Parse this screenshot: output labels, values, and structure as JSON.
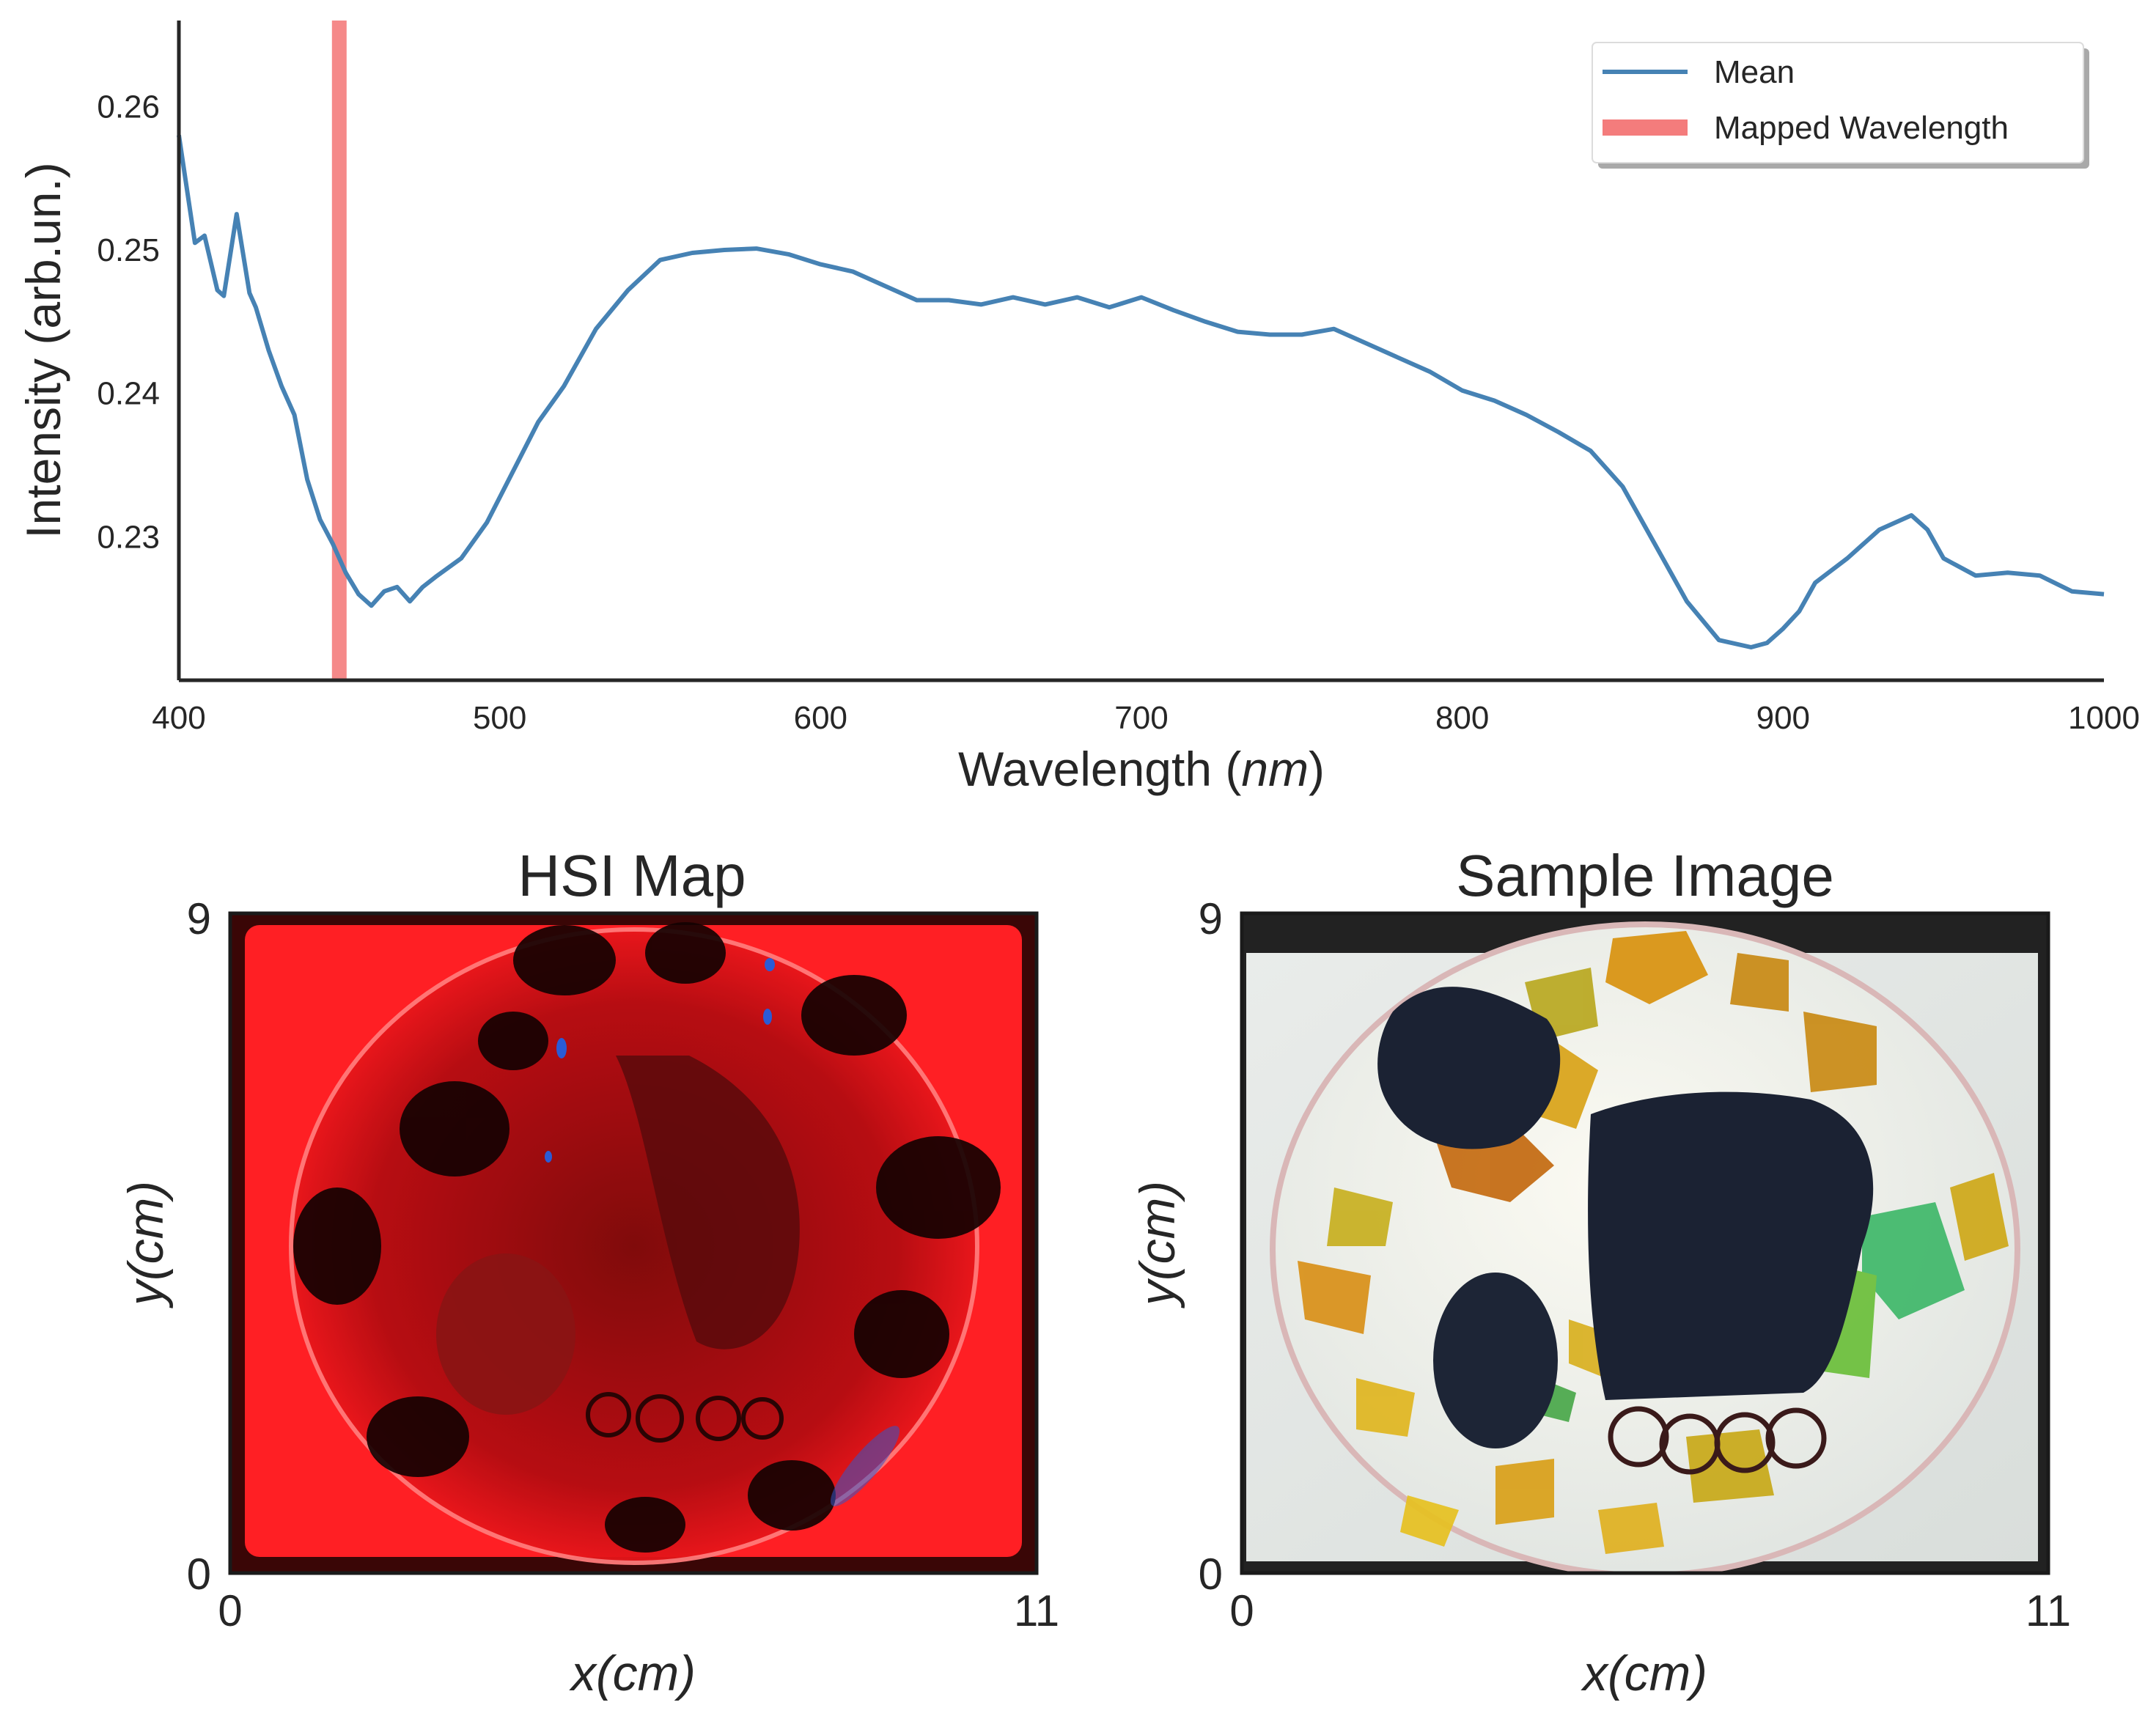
{
  "chart_data": [
    {
      "type": "line",
      "title": "",
      "xlabel": "Wavelength (nm)",
      "xlabel_parts": {
        "prefix": "Wavelength (",
        "unit": "nm",
        "suffix": ")"
      },
      "ylabel": "Intensity (arb.un.)",
      "xlim": [
        400,
        1000
      ],
      "ylim": [
        0.22,
        0.266
      ],
      "xticks": [
        "400",
        "500",
        "600",
        "700",
        "800",
        "900",
        "1000"
      ],
      "yticks": [
        "0.23",
        "0.24",
        "0.25",
        "0.26"
      ],
      "grid": false,
      "legend": {
        "placement": "top-right",
        "entries": [
          "Mean",
          "Mapped Wavelength"
        ]
      },
      "series": [
        {
          "name": "Mean",
          "color": "#4682b4",
          "x": [
            400,
            405,
            408,
            412,
            414,
            418,
            422,
            424,
            428,
            432,
            436,
            440,
            444,
            448,
            452,
            456,
            460,
            464,
            468,
            472,
            476,
            480,
            488,
            496,
            504,
            512,
            520,
            530,
            540,
            550,
            560,
            570,
            580,
            590,
            600,
            610,
            620,
            630,
            640,
            650,
            660,
            670,
            680,
            690,
            700,
            710,
            720,
            730,
            740,
            750,
            760,
            770,
            780,
            790,
            800,
            810,
            820,
            830,
            840,
            850,
            860,
            870,
            880,
            890,
            895,
            900,
            905,
            910,
            920,
            930,
            940,
            945,
            950,
            960,
            970,
            980,
            990,
            1000
          ],
          "values": [
            0.258,
            0.2505,
            0.251,
            0.2472,
            0.2468,
            0.2525,
            0.247,
            0.246,
            0.243,
            0.2405,
            0.2385,
            0.234,
            0.2312,
            0.2295,
            0.2275,
            0.226,
            0.2252,
            0.2262,
            0.2265,
            0.2255,
            0.2265,
            0.2272,
            0.2285,
            0.231,
            0.2345,
            0.238,
            0.2405,
            0.2445,
            0.2472,
            0.2493,
            0.2498,
            0.25,
            0.2501,
            0.2497,
            0.249,
            0.2485,
            0.2475,
            0.2465,
            0.2465,
            0.2462,
            0.2467,
            0.2462,
            0.2467,
            0.246,
            0.2467,
            0.2458,
            0.245,
            0.2443,
            0.2441,
            0.2441,
            0.2445,
            0.2435,
            0.2425,
            0.2415,
            0.2402,
            0.2395,
            0.2385,
            0.2373,
            0.236,
            0.2335,
            0.2295,
            0.2255,
            0.2228,
            0.2223,
            0.2226,
            0.2236,
            0.2248,
            0.2268,
            0.2285,
            0.2305,
            0.2315,
            0.2305,
            0.2285,
            0.2273,
            0.2275,
            0.2273,
            0.2262,
            0.226
          ]
        },
        {
          "name": "Mapped Wavelength",
          "color": "#f47c7c",
          "x": [
            450,
            450
          ],
          "values": [
            0.22,
            0.266
          ]
        }
      ]
    },
    {
      "type": "heatmap",
      "title": "HSI Map",
      "xlabel": "x(cm)",
      "ylabel": "y(cm)",
      "xlim": [
        0,
        11
      ],
      "ylim": [
        0,
        9
      ],
      "xticks": [
        "0",
        "11"
      ],
      "yticks": [
        "0",
        "9"
      ]
    },
    {
      "type": "image",
      "title": "Sample Image",
      "xlabel": "x(cm)",
      "ylabel": "y(cm)",
      "xlim": [
        0,
        11
      ],
      "ylim": [
        0,
        9
      ],
      "xticks": [
        "0",
        "11"
      ],
      "yticks": [
        "0",
        "9"
      ]
    }
  ]
}
